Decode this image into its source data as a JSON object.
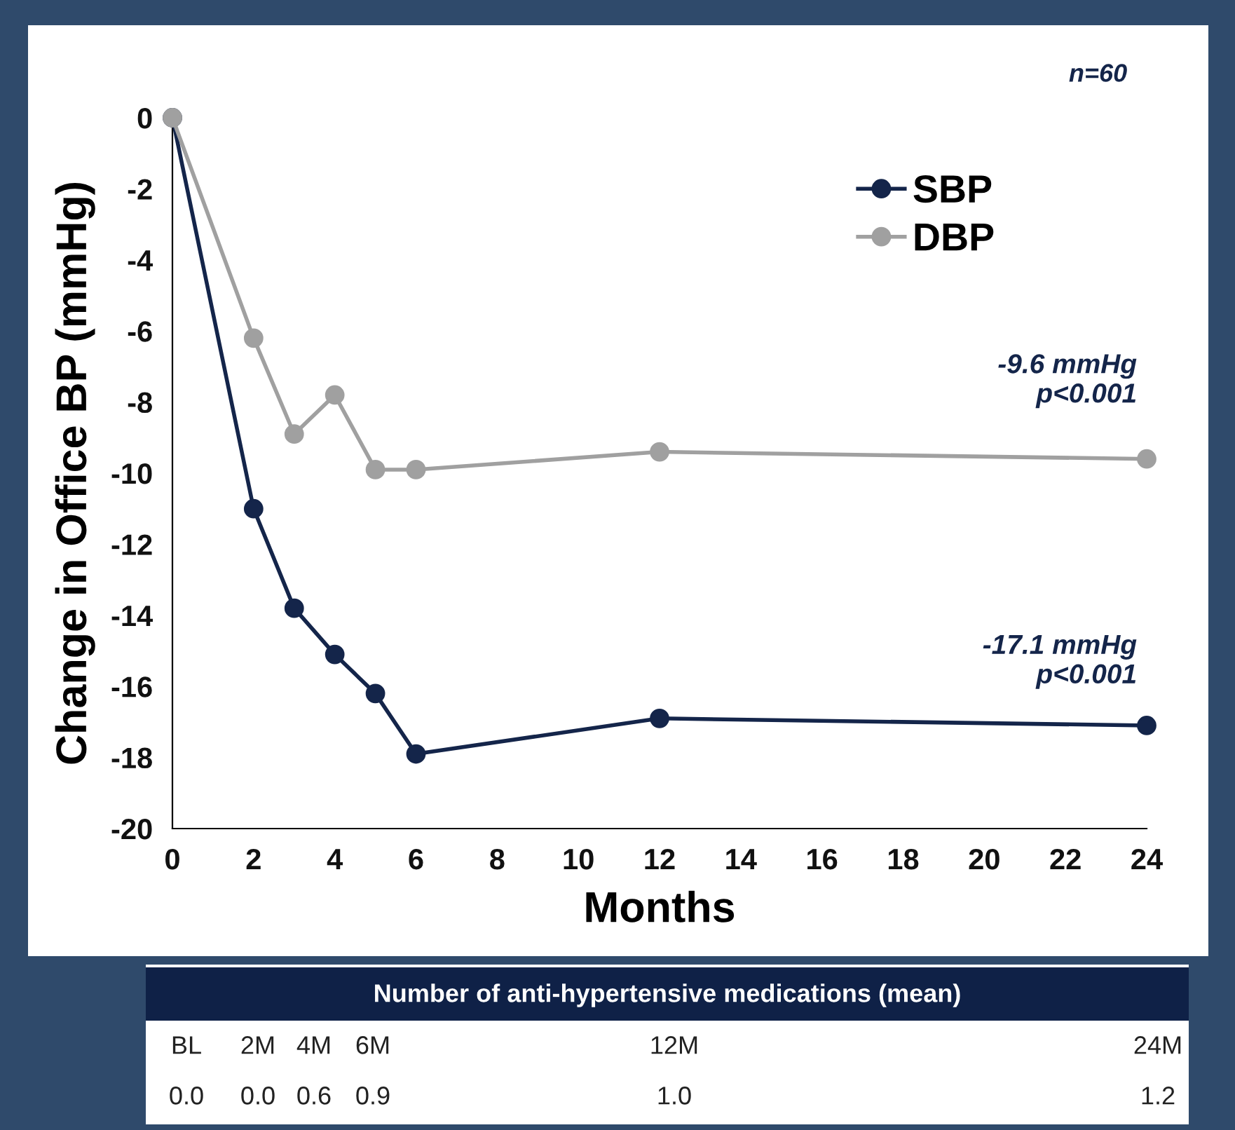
{
  "chart_data": {
    "type": "line",
    "xlabel": "Months",
    "ylabel": "Change in Office BP (mmHg)",
    "x": [
      0,
      2,
      3,
      4,
      5,
      6,
      12,
      24
    ],
    "series": [
      {
        "name": "SBP",
        "color": "#14254a",
        "values": [
          0,
          -11.0,
          -13.8,
          -15.1,
          -16.2,
          -17.9,
          -16.9,
          -17.1
        ]
      },
      {
        "name": "DBP",
        "color": "#a0a0a0",
        "values": [
          0,
          -6.2,
          -8.9,
          -7.8,
          -9.9,
          -9.9,
          -9.4,
          -9.6
        ]
      }
    ],
    "xlim": [
      0,
      24
    ],
    "xticks": [
      0,
      2,
      4,
      6,
      8,
      10,
      12,
      14,
      16,
      18,
      20,
      22,
      24
    ],
    "ylim": [
      -20,
      0
    ],
    "yticks": [
      -20,
      -18,
      -16,
      -14,
      -12,
      -10,
      -8,
      -6,
      -4,
      -2,
      0
    ],
    "marker": "circle",
    "line_style": "solid",
    "grid": false,
    "legend": "top right",
    "annotations": [
      "n=60",
      "-9.6 mmHg\np<0.001",
      "-17.1 mmHg\np<0.001",
      "Number of anti-hypertensive medications (mean)",
      "BL",
      "2M",
      "4M",
      "6M",
      "12M",
      "24M",
      "0.0",
      "0.0",
      "0.6",
      "0.9",
      "1.0",
      "1.2"
    ]
  }
}
